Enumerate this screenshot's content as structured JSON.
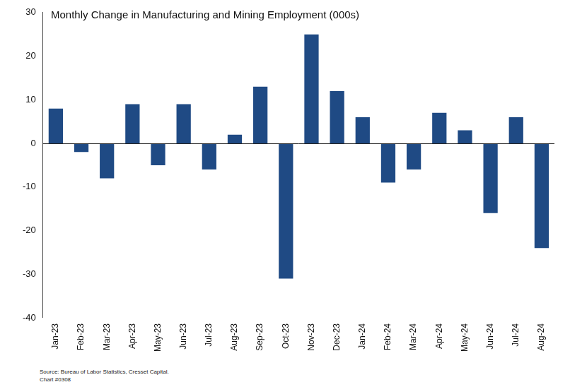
{
  "chart_data": {
    "type": "bar",
    "title": "Monthly Change in Manufacturing and Mining Employment (000s)",
    "annotations": [
      "Source: Bureau of Labor Statistics, Cresset Capital.",
      "Chart #0308"
    ],
    "categories": [
      "Jan-23",
      "Feb-23",
      "Mar-23",
      "Apr-23",
      "May-23",
      "Jun-23",
      "Jul-23",
      "Aug-23",
      "Sep-23",
      "Oct-23",
      "Nov-23",
      "Dec-23",
      "Jan-24",
      "Feb-24",
      "Mar-24",
      "Apr-24",
      "May-24",
      "Jun-24",
      "Jul-24",
      "Aug-24"
    ],
    "values": [
      8,
      -2,
      -8,
      9,
      -5,
      9,
      -6,
      2,
      13,
      -31,
      25,
      12,
      6,
      -9,
      -6,
      7,
      3,
      -16,
      6,
      -24
    ],
    "color": "#1f4a84",
    "ylim": [
      -40,
      30
    ],
    "yticks": [
      -40,
      -30,
      -20,
      -10,
      0,
      10,
      20,
      30
    ],
    "grid": false
  }
}
